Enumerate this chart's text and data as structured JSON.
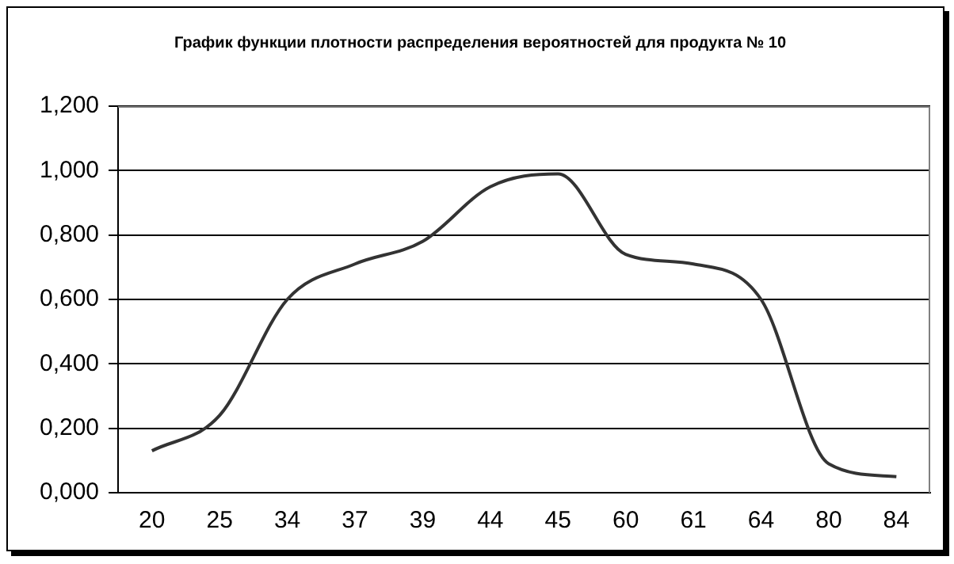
{
  "chart_data": {
    "type": "line",
    "title": "График функции плотности распределения вероятностей для продукта № 10",
    "categories": [
      "20",
      "25",
      "34",
      "37",
      "39",
      "44",
      "45",
      "60",
      "61",
      "64",
      "80",
      "84"
    ],
    "series": [
      {
        "color": "#333333",
        "values": [
          0.13,
          0.24,
          0.6,
          0.71,
          0.78,
          0.95,
          0.99,
          0.74,
          0.71,
          0.6,
          0.09,
          0.05
        ]
      }
    ],
    "ylim": [
      0,
      1.2
    ],
    "yticks": [
      {
        "value": 0,
        "label": "0,000"
      },
      {
        "value": 0.2,
        "label": "0,200"
      },
      {
        "value": 0.4,
        "label": "0,400"
      },
      {
        "value": 0.6,
        "label": "0,600"
      },
      {
        "value": 0.8,
        "label": "0,800"
      },
      {
        "value": 1,
        "label": "1,000"
      },
      {
        "value": 1.2,
        "label": "1,200"
      }
    ],
    "grid": "y",
    "legend": false,
    "marker": "none",
    "line_style": "solid"
  }
}
